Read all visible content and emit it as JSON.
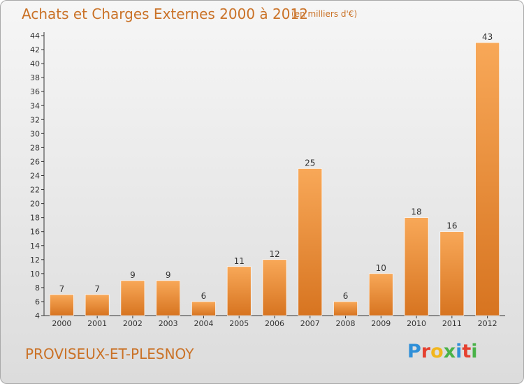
{
  "header": {
    "title": "Achats et Charges Externes 2000 à 2012",
    "subtitle": "(en milliers d'€)"
  },
  "footer": {
    "commune": "PROVISEUX-ET-PLESNOY",
    "brand": "Proxiti"
  },
  "colors": {
    "title": "#ca7227",
    "bar_light": "#f8a858",
    "bar_dark": "#d77420",
    "axis": "#333333"
  },
  "chart_data": {
    "type": "bar",
    "title": "Achats et Charges Externes 2000 à 2012",
    "subtitle": "(en milliers d'€)",
    "categories": [
      "2000",
      "2001",
      "2002",
      "2003",
      "2004",
      "2005",
      "2006",
      "2007",
      "2008",
      "2009",
      "2010",
      "2011",
      "2012"
    ],
    "values": [
      7,
      7,
      9,
      9,
      6,
      11,
      12,
      25,
      6,
      10,
      18,
      16,
      43
    ],
    "ylim": [
      4,
      44
    ],
    "ytick_step": 2,
    "grid": false,
    "xlabel": "",
    "ylabel": ""
  }
}
